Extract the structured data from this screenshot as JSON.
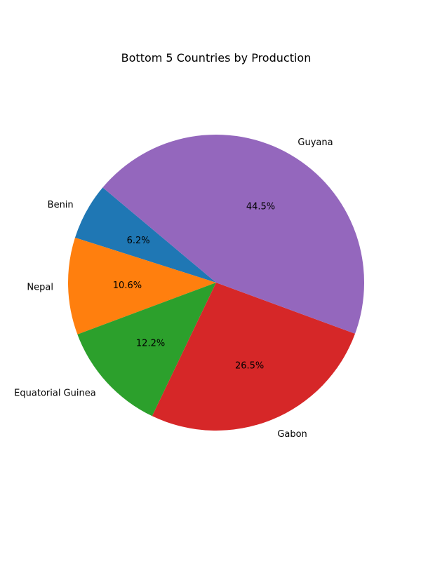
{
  "chart_data": {
    "type": "pie",
    "title": "Bottom 5 Countries by Production",
    "categories": [
      "Benin",
      "Nepal",
      "Equatorial Guinea",
      "Gabon",
      "Guyana"
    ],
    "values": [
      6.2,
      10.6,
      12.2,
      26.5,
      44.5
    ],
    "percent_labels": [
      "6.2%",
      "10.6%",
      "12.2%",
      "26.5%",
      "44.5%"
    ],
    "colors": [
      "#1f77b4",
      "#ff7f0e",
      "#2ca02c",
      "#d62728",
      "#9467bd"
    ],
    "start_angle_deg": 140,
    "direction": "counterclockwise",
    "legend": "none"
  }
}
